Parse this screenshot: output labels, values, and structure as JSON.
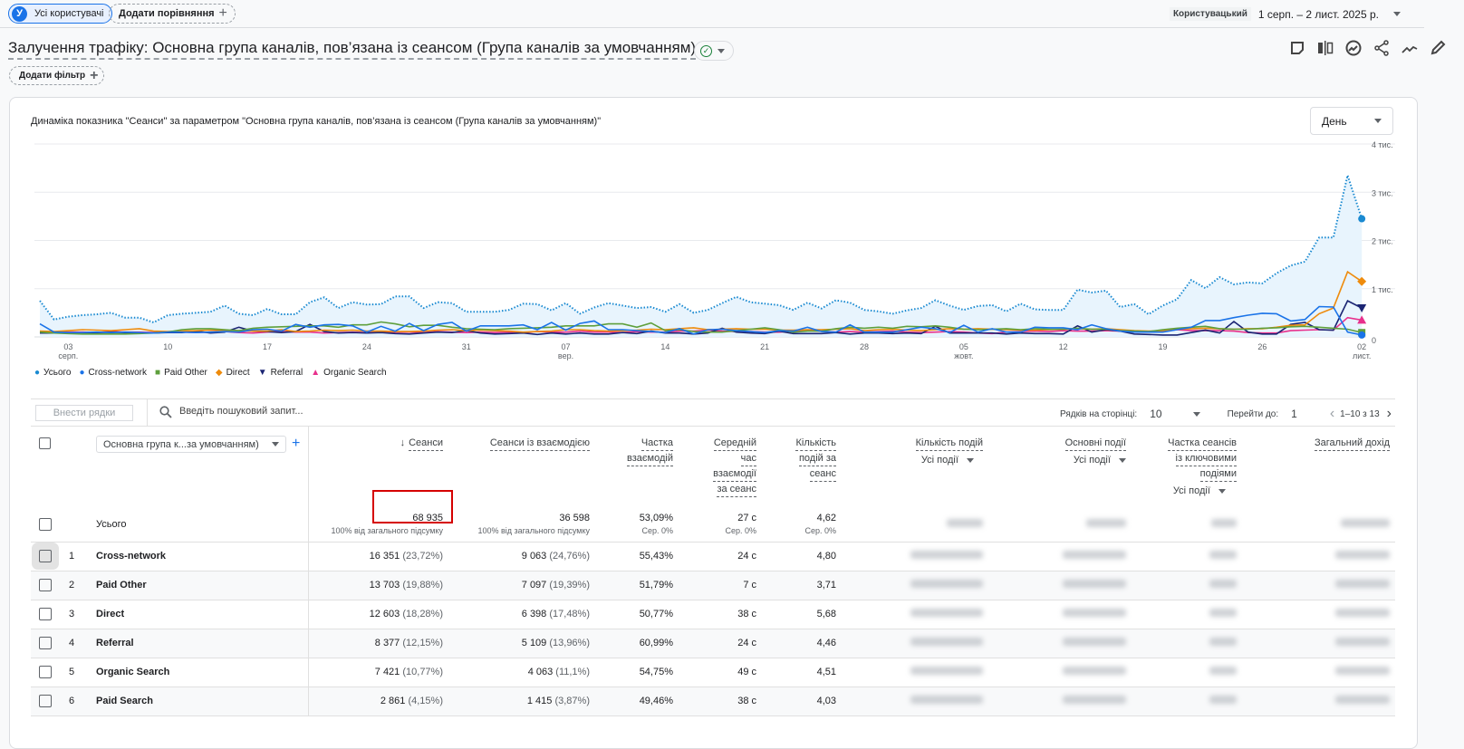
{
  "top": {
    "segment_avatar": "У",
    "segment": "Усі користувачі",
    "add_comparison": "Додати порівняння",
    "date_mode": "Користувацький",
    "date_range": "1 серп. – 2 лист. 2025 р."
  },
  "header": {
    "title": "Залучення трафіку: Основна група каналів, пов’язана із сеансом (Група каналів за умовчанням)",
    "add_filter": "Додати фільтр"
  },
  "chart_card": {
    "title": "Динаміка показника \"Сеанси\" за параметром \"Основна група каналів, пов’язана із сеансом (Група каналів за умовчанням)\"",
    "granularity": "День"
  },
  "chart_data": {
    "type": "line",
    "x_start": "2025-08-01",
    "x_end": "2025-11-02",
    "ylim": [
      0,
      4000
    ],
    "y_ticks": [
      "0",
      "1 тис.",
      "2 тис.",
      "3 тис.",
      "4 тис."
    ],
    "x_ticks": [
      {
        "day": 2,
        "label": "03",
        "sub": "серп."
      },
      {
        "day": 9,
        "label": "10"
      },
      {
        "day": 16,
        "label": "17"
      },
      {
        "day": 23,
        "label": "24"
      },
      {
        "day": 30,
        "label": "31"
      },
      {
        "day": 37,
        "label": "07",
        "sub": "вер."
      },
      {
        "day": 44,
        "label": "14"
      },
      {
        "day": 51,
        "label": "21"
      },
      {
        "day": 58,
        "label": "28"
      },
      {
        "day": 65,
        "label": "05",
        "sub": "жовт."
      },
      {
        "day": 72,
        "label": "12"
      },
      {
        "day": 79,
        "label": "19"
      },
      {
        "day": 86,
        "label": "26"
      },
      {
        "day": 93,
        "label": "02",
        "sub": "лист."
      }
    ],
    "series": [
      {
        "name": "Усього",
        "color": "#1a8ad1",
        "values": [
          750,
          360,
          420,
          450,
          470,
          500,
          400,
          400,
          300,
          450,
          480,
          500,
          520,
          650,
          480,
          450,
          580,
          470,
          470,
          720,
          820,
          600,
          720,
          670,
          680,
          840,
          840,
          600,
          720,
          700,
          520,
          520,
          520,
          560,
          690,
          680,
          550,
          700,
          480,
          610,
          700,
          650,
          600,
          620,
          520,
          680,
          500,
          560,
          700,
          830,
          720,
          690,
          660,
          560,
          710,
          590,
          760,
          710,
          560,
          530,
          480,
          550,
          600,
          760,
          650,
          560,
          640,
          660,
          530,
          690,
          570,
          560,
          560,
          980,
          920,
          960,
          620,
          680,
          470,
          650,
          780,
          1180,
          1010,
          1240,
          1090,
          1130,
          1110,
          1320,
          1480,
          1560,
          2060,
          2060,
          3350,
          2450
        ]
      },
      {
        "name": "Cross-network",
        "color": "#1a73e8",
        "values": [
          270,
          100,
          90,
          90,
          100,
          90,
          100,
          90,
          80,
          100,
          100,
          90,
          100,
          110,
          100,
          150,
          160,
          120,
          260,
          200,
          250,
          260,
          230,
          100,
          220,
          120,
          280,
          130,
          260,
          300,
          120,
          230,
          230,
          230,
          250,
          150,
          300,
          140,
          280,
          330,
          150,
          150,
          130,
          110,
          90,
          170,
          60,
          150,
          160,
          130,
          110,
          90,
          130,
          120,
          200,
          110,
          100,
          250,
          100,
          100,
          100,
          150,
          200,
          170,
          90,
          240,
          100,
          170,
          100,
          100,
          200,
          190,
          190,
          150,
          250,
          170,
          120,
          100,
          100,
          100,
          150,
          200,
          340,
          340,
          400,
          450,
          490,
          480,
          330,
          360,
          630,
          620,
          100,
          40
        ]
      },
      {
        "name": "Paid Other",
        "color": "#5e9f3c",
        "values": [
          100,
          80,
          70,
          60,
          60,
          60,
          60,
          70,
          80,
          100,
          150,
          170,
          170,
          150,
          130,
          180,
          200,
          210,
          220,
          230,
          230,
          200,
          250,
          250,
          310,
          270,
          210,
          240,
          240,
          200,
          170,
          160,
          150,
          170,
          180,
          190,
          200,
          230,
          230,
          230,
          270,
          270,
          200,
          290,
          130,
          150,
          110,
          100,
          100,
          130,
          160,
          190,
          150,
          100,
          120,
          120,
          170,
          200,
          180,
          200,
          180,
          220,
          210,
          230,
          200,
          160,
          150,
          160,
          170,
          150,
          170,
          160,
          160,
          180,
          160,
          160,
          130,
          120,
          110,
          150,
          180,
          200,
          220,
          170,
          160,
          160,
          180,
          190,
          210,
          220,
          200,
          180,
          160,
          90
        ]
      },
      {
        "name": "Direct",
        "color": "#ee8b0c",
        "values": [
          120,
          110,
          130,
          150,
          140,
          130,
          150,
          170,
          120,
          110,
          120,
          130,
          140,
          130,
          130,
          120,
          120,
          150,
          110,
          120,
          140,
          130,
          140,
          120,
          120,
          110,
          110,
          120,
          140,
          150,
          130,
          140,
          130,
          120,
          100,
          110,
          120,
          150,
          150,
          130,
          120,
          130,
          140,
          160,
          150,
          170,
          190,
          150,
          160,
          170,
          160,
          160,
          140,
          140,
          150,
          150,
          160,
          170,
          130,
          150,
          160,
          140,
          130,
          150,
          170,
          160,
          170,
          160,
          150,
          140,
          140,
          150,
          160,
          170,
          160,
          170,
          150,
          130,
          120,
          130,
          160,
          170,
          180,
          170,
          160,
          170,
          170,
          200,
          240,
          250,
          480,
          600,
          1350,
          1150
        ]
      },
      {
        "name": "Referral",
        "color": "#1b2573",
        "values": [
          80,
          80,
          80,
          80,
          90,
          100,
          90,
          80,
          80,
          90,
          90,
          120,
          80,
          100,
          200,
          120,
          110,
          90,
          110,
          260,
          110,
          80,
          90,
          80,
          90,
          70,
          60,
          80,
          100,
          90,
          130,
          80,
          60,
          70,
          80,
          50,
          80,
          60,
          80,
          60,
          60,
          90,
          70,
          120,
          80,
          80,
          60,
          80,
          180,
          100,
          80,
          70,
          120,
          70,
          70,
          70,
          90,
          60,
          80,
          80,
          70,
          80,
          70,
          220,
          80,
          80,
          80,
          80,
          60,
          80,
          70,
          70,
          60,
          230,
          100,
          150,
          120,
          60,
          50,
          40,
          40,
          90,
          140,
          80,
          320,
          100,
          60,
          60,
          260,
          300,
          150,
          140,
          750,
          600
        ]
      },
      {
        "name": "Organic Search",
        "color": "#e8308c",
        "values": [
          100,
          90,
          100,
          100,
          90,
          110,
          100,
          100,
          90,
          100,
          100,
          90,
          100,
          110,
          90,
          80,
          100,
          110,
          100,
          100,
          80,
          90,
          100,
          90,
          90,
          100,
          100,
          90,
          110,
          100,
          90,
          100,
          90,
          100,
          90,
          110,
          100,
          100,
          120,
          100,
          100,
          90,
          110,
          100,
          100,
          120,
          120,
          140,
          120,
          110,
          110,
          100,
          100,
          120,
          130,
          120,
          100,
          110,
          100,
          110,
          120,
          100,
          90,
          100,
          110,
          100,
          80,
          70,
          100,
          110,
          120,
          110,
          130,
          120,
          120,
          130,
          120,
          120,
          100,
          110,
          150,
          130,
          130,
          130,
          120,
          90,
          80,
          80,
          130,
          140,
          150,
          140,
          400,
          350
        ]
      }
    ]
  },
  "toolbar": {
    "import_rows": "Внести рядки",
    "search_placeholder": "Введіть пошуковий запит...",
    "rows_per_page_label": "Рядків на сторінці:",
    "rows_per_page": "10",
    "goto_label": "Перейти до:",
    "goto_value": "1",
    "range": "1–10 з 13"
  },
  "table": {
    "dimension": "Основна група к...за умовчанням)",
    "columns": {
      "sessions": "Сеанси",
      "engaged": "Сеанси із взаємодією",
      "eng_rate_1": "Частка",
      "eng_rate_2": "взаємодій",
      "avg_1": "Середній",
      "avg_2": "час",
      "avg_3": "взаємодії",
      "avg_4": "за сеанс",
      "evps_1": "Кількість",
      "evps_2": "подій за",
      "evps_3": "сеанс",
      "events": "Кількість подій",
      "events_sub": "Усі події",
      "key": "Основні події",
      "key_sub": "Усі події",
      "keyrate_1": "Частка сеансів",
      "keyrate_2": "із ключовими",
      "keyrate_3": "подіями",
      "keyrate_sub": "Усі події",
      "revenue": "Загальний дохід"
    },
    "total": {
      "label": "Усього",
      "sessions": "68 935",
      "sessions_sub": "100% від загального підсумку",
      "engaged": "36 598",
      "engaged_sub": "100% від загального підсумку",
      "eng_rate": "53,09%",
      "eng_rate_sub": "Сер. 0%",
      "avg": "27 с",
      "avg_sub": "Сер. 0%",
      "evps": "4,62",
      "evps_sub": "Сер. 0%"
    },
    "rows": [
      {
        "idx": "1",
        "name": "Cross-network",
        "sessions": "16 351",
        "sessions_pct": "(23,72%)",
        "engaged": "9 063",
        "engaged_pct": "(24,76%)",
        "eng_rate": "55,43%",
        "avg": "24 с",
        "evps": "4,80"
      },
      {
        "idx": "2",
        "name": "Paid Other",
        "sessions": "13 703",
        "sessions_pct": "(19,88%)",
        "engaged": "7 097",
        "engaged_pct": "(19,39%)",
        "eng_rate": "51,79%",
        "avg": "7 с",
        "evps": "3,71"
      },
      {
        "idx": "3",
        "name": "Direct",
        "sessions": "12 603",
        "sessions_pct": "(18,28%)",
        "engaged": "6 398",
        "engaged_pct": "(17,48%)",
        "eng_rate": "50,77%",
        "avg": "38 с",
        "evps": "5,68"
      },
      {
        "idx": "4",
        "name": "Referral",
        "sessions": "8 377",
        "sessions_pct": "(12,15%)",
        "engaged": "5 109",
        "engaged_pct": "(13,96%)",
        "eng_rate": "60,99%",
        "avg": "24 с",
        "evps": "4,46"
      },
      {
        "idx": "5",
        "name": "Organic Search",
        "sessions": "7 421",
        "sessions_pct": "(10,77%)",
        "engaged": "4 063",
        "engaged_pct": "(11,1%)",
        "eng_rate": "54,75%",
        "avg": "49 с",
        "evps": "4,51"
      },
      {
        "idx": "6",
        "name": "Paid Search",
        "sessions": "2 861",
        "sessions_pct": "(4,15%)",
        "engaged": "1 415",
        "engaged_pct": "(3,87%)",
        "eng_rate": "49,46%",
        "avg": "38 с",
        "evps": "4,03"
      }
    ]
  }
}
